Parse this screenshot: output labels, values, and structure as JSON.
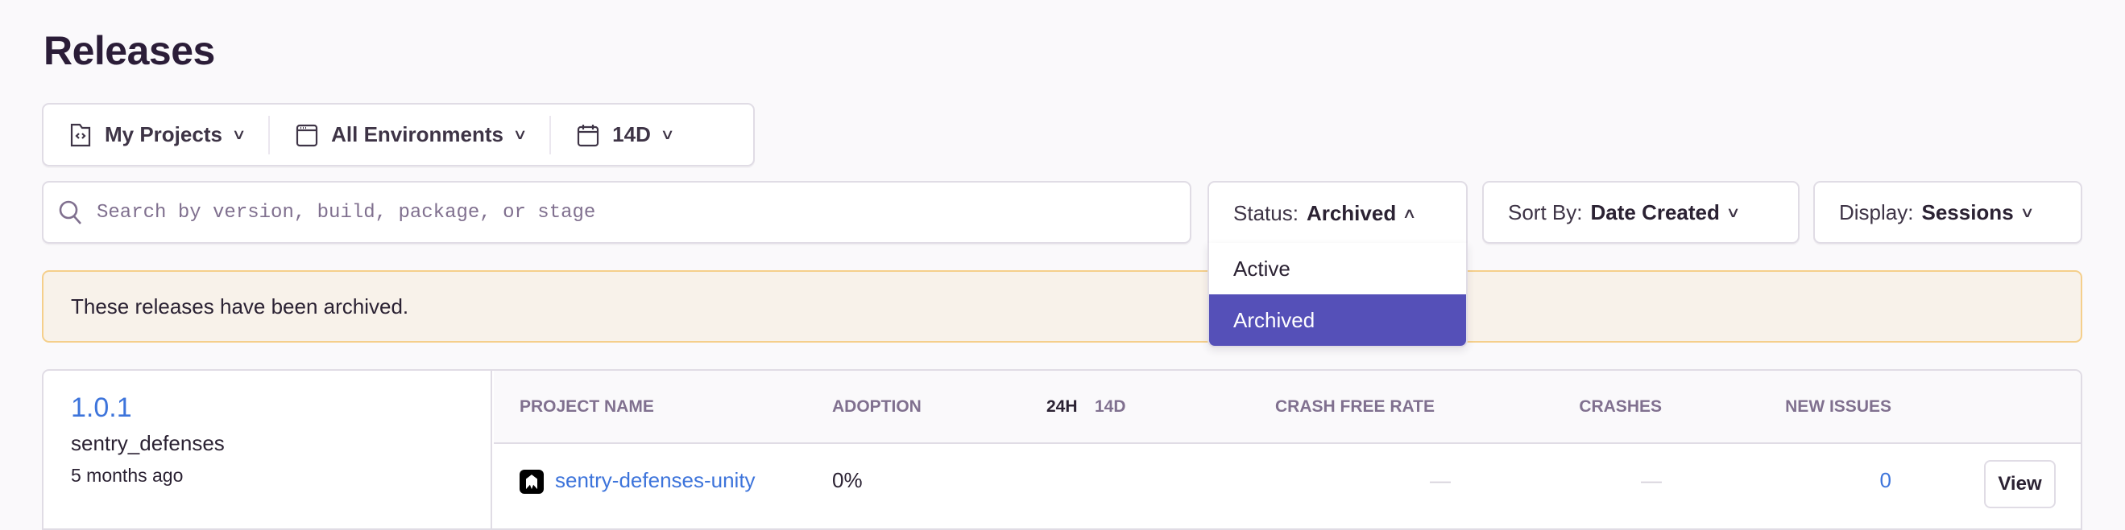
{
  "page": {
    "title": "Releases"
  },
  "filters": {
    "projects": {
      "label": "My Projects",
      "icon": "project-folder-icon"
    },
    "environments": {
      "label": "All Environments",
      "icon": "window-icon"
    },
    "date": {
      "label": "14D",
      "icon": "calendar-icon"
    }
  },
  "search": {
    "placeholder": "Search by version, build, package, or stage",
    "value": ""
  },
  "status": {
    "prefix": "Status:",
    "value": "Archived",
    "options": [
      "Active",
      "Archived"
    ],
    "selected": "Archived"
  },
  "sort": {
    "prefix": "Sort By:",
    "value": "Date Created"
  },
  "display": {
    "prefix": "Display:",
    "value": "Sessions"
  },
  "alert": {
    "message": "These releases have been archived."
  },
  "colors": {
    "accent": "#5550b8",
    "link": "#3d74db",
    "alert_bg": "#f8f2ea",
    "alert_border": "#f5cf8b"
  },
  "release": {
    "version": "1.0.1",
    "project": "sentry_defenses",
    "age": "5 months ago",
    "columns": {
      "project_name": "Project Name",
      "adoption": "Adoption",
      "period_24h": "24H",
      "period_14d": "14D",
      "crash_free_rate": "Crash Free Rate",
      "crashes": "Crashes",
      "new_issues": "New Issues"
    },
    "rows": [
      {
        "project_name": "sentry-defenses-unity",
        "adoption": "0%",
        "crash_free_rate": "—",
        "crashes": "—",
        "new_issues": "0",
        "action": "View"
      }
    ]
  }
}
